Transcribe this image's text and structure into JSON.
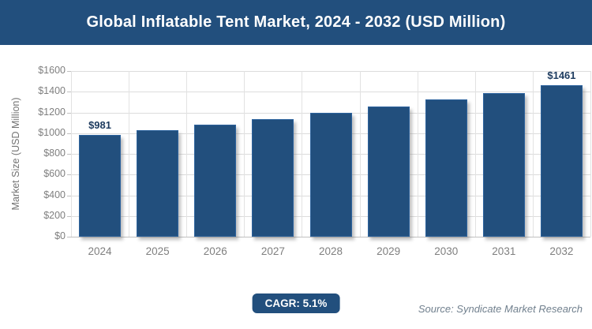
{
  "header": {
    "title": "Global Inflatable Tent Market, 2024 - 2032 (USD Million)"
  },
  "chart_data": {
    "type": "bar",
    "title": "Global Inflatable Tent Market, 2024 - 2032 (USD Million)",
    "categories": [
      "2024",
      "2025",
      "2026",
      "2027",
      "2028",
      "2029",
      "2030",
      "2031",
      "2032"
    ],
    "values": [
      981,
      1031,
      1084,
      1139,
      1197,
      1258,
      1322,
      1390,
      1461
    ],
    "ylabel": "Market Size (USD Million)",
    "xlabel": "",
    "ylim": [
      0,
      1600
    ],
    "ytick_step": 200,
    "ytick_labels": [
      "$0",
      "$200",
      "$400",
      "$600",
      "$800",
      "$1000",
      "$1200",
      "$1400",
      "$1600"
    ],
    "value_labels": [
      {
        "index": 0,
        "text": "$981"
      },
      {
        "index": 8,
        "text": "$1461"
      }
    ],
    "grid": true,
    "legend": "none",
    "bar_color": "#224F7D"
  },
  "footer": {
    "cagr_label": "CAGR: 5.1%",
    "source": "Source: Syndicate Market Research"
  },
  "colors": {
    "navy": "#224F7D",
    "axis_text": "#7F7F7F",
    "data_label": "#1C3A5E",
    "gridline": "#DCDCDC"
  }
}
